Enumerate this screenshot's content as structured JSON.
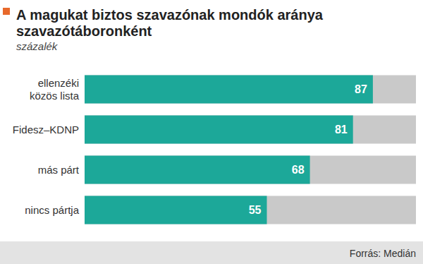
{
  "chart_data": {
    "type": "bar",
    "title": "A magukat biztos szavazónak mondók aránya\nszavazótáboronként",
    "subtitle": "százalék",
    "annotations": [
      "Forrás: Medián"
    ],
    "orientation": "horizontal",
    "categories": [
      "ellenzéki\nközös lista",
      "Fidesz–KDNP",
      "más párt",
      "nincs pártja"
    ],
    "values": [
      87,
      81,
      68,
      55
    ],
    "color": "#1ca899",
    "xlim": [
      0,
      100
    ],
    "grid": false,
    "data_labels": true,
    "tick_labels": "y"
  }
}
